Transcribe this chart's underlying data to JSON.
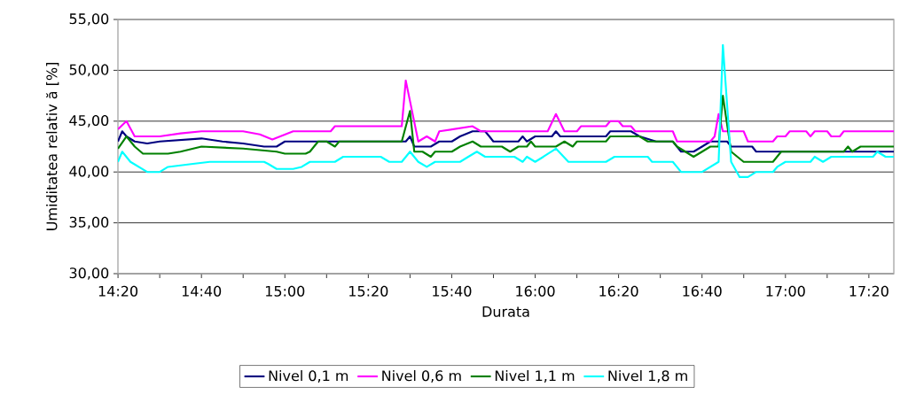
{
  "chart_data": {
    "type": "line",
    "xlabel": "Durata",
    "ylabel": "Umiditatea relativ ă [%]",
    "xlim": [
      14.333,
      17.433
    ],
    "ylim": [
      30,
      55
    ],
    "xticks": [
      {
        "value": 14.3333,
        "label": "14:20"
      },
      {
        "value": 14.5,
        "label": null
      },
      {
        "value": 14.6667,
        "label": "14:40"
      },
      {
        "value": 14.8333,
        "label": null
      },
      {
        "value": 15,
        "label": "15:00"
      },
      {
        "value": 15.1667,
        "label": null
      },
      {
        "value": 15.3333,
        "label": "15:20"
      },
      {
        "value": 15.5,
        "label": null
      },
      {
        "value": 15.6667,
        "label": "15:40"
      },
      {
        "value": 15.8333,
        "label": null
      },
      {
        "value": 16,
        "label": "16:00"
      },
      {
        "value": 16.1667,
        "label": null
      },
      {
        "value": 16.3333,
        "label": "16:20"
      },
      {
        "value": 16.5,
        "label": null
      },
      {
        "value": 16.6667,
        "label": "16:40"
      },
      {
        "value": 16.8333,
        "label": null
      },
      {
        "value": 17,
        "label": "17:00"
      },
      {
        "value": 17.1667,
        "label": null
      },
      {
        "value": 17.3333,
        "label": "17:20"
      }
    ],
    "yticks": [
      {
        "value": 30,
        "label": "30,00"
      },
      {
        "value": 35,
        "label": "35,00"
      },
      {
        "value": 40,
        "label": "40,00"
      },
      {
        "value": 45,
        "label": "45,00"
      },
      {
        "value": 50,
        "label": "50,00"
      },
      {
        "value": 55,
        "label": "55,00"
      }
    ],
    "grid": "y",
    "legend": "bottom",
    "series": [
      {
        "name": "Nivel 0,1 m",
        "color": "#000080",
        "x": [
          14.333,
          14.35,
          14.367,
          14.4,
          14.45,
          14.5,
          14.667,
          14.75,
          14.833,
          14.917,
          14.967,
          15,
          15.483,
          15.5,
          15.517,
          15.583,
          15.617,
          15.667,
          15.7,
          15.75,
          15.8,
          15.817,
          15.833,
          15.933,
          15.95,
          15.967,
          16,
          16.067,
          16.083,
          16.1,
          16.283,
          16.3,
          16.383,
          16.417,
          16.483,
          16.55,
          16.583,
          16.633,
          16.667,
          16.7,
          16.767,
          16.783,
          16.867,
          16.883,
          17.433
        ],
        "values": [
          43,
          44,
          43.5,
          43,
          42.8,
          43,
          43.3,
          43,
          42.8,
          42.5,
          42.5,
          43,
          43,
          43.5,
          42.5,
          42.5,
          43,
          43,
          43.5,
          44,
          44,
          43.5,
          43,
          43,
          43.5,
          43,
          43.5,
          43.5,
          44,
          43.5,
          43.5,
          44,
          44,
          43.5,
          43,
          43,
          42,
          42,
          42.5,
          43,
          43,
          42.5,
          42.5,
          42,
          42
        ]
      },
      {
        "name": "Nivel 0,6 m",
        "color": "#ff00ff",
        "x": [
          14.333,
          14.367,
          14.4,
          14.5,
          14.583,
          14.667,
          14.833,
          14.9,
          14.95,
          15.033,
          15.183,
          15.2,
          15.467,
          15.483,
          15.533,
          15.567,
          15.6,
          15.617,
          15.75,
          15.783,
          16.05,
          16.083,
          16.117,
          16.167,
          16.183,
          16.283,
          16.3,
          16.333,
          16.35,
          16.383,
          16.4,
          16.55,
          16.567,
          16.7,
          16.717,
          16.733,
          16.75,
          16.833,
          16.85,
          16.95,
          16.967,
          17,
          17.017,
          17.083,
          17.1,
          17.117,
          17.167,
          17.183,
          17.217,
          17.233,
          17.433
        ],
        "values": [
          44.2,
          45,
          43.5,
          43.5,
          43.8,
          44,
          44,
          43.7,
          43.2,
          44,
          44,
          44.5,
          44.5,
          49,
          43,
          43.5,
          43,
          44,
          44.5,
          44,
          44,
          45.7,
          44,
          44,
          44.5,
          44.5,
          45,
          45,
          44.5,
          44.5,
          44,
          44,
          43,
          43,
          43.5,
          45.7,
          44,
          44,
          43,
          43,
          43.5,
          43.5,
          44,
          44,
          43.5,
          44,
          44,
          43.5,
          43.5,
          44,
          44
        ]
      },
      {
        "name": "Nivel 1,1 m",
        "color": "#008000",
        "x": [
          14.333,
          14.367,
          14.4,
          14.433,
          14.533,
          14.583,
          14.667,
          14.833,
          14.967,
          15,
          15.083,
          15.1,
          15.133,
          15.167,
          15.2,
          15.217,
          15.467,
          15.5,
          15.517,
          15.55,
          15.583,
          15.6,
          15.667,
          15.7,
          15.75,
          15.783,
          15.867,
          15.9,
          15.933,
          15.967,
          15.983,
          16,
          16.083,
          16.117,
          16.15,
          16.167,
          16.283,
          16.3,
          16.417,
          16.45,
          16.55,
          16.567,
          16.6,
          16.633,
          16.667,
          16.7,
          16.733,
          16.75,
          16.783,
          16.833,
          16.95,
          16.983,
          17.233,
          17.25,
          17.267,
          17.3,
          17.433
        ],
        "values": [
          42.3,
          43.5,
          42.5,
          41.8,
          41.8,
          42,
          42.5,
          42.3,
          42,
          41.8,
          41.8,
          42,
          43,
          43,
          42.5,
          43,
          43,
          46,
          42,
          42,
          41.5,
          42,
          42,
          42.5,
          43,
          42.5,
          42.5,
          42,
          42.5,
          42.5,
          43,
          42.5,
          42.5,
          43,
          42.5,
          43,
          43,
          43.5,
          43.5,
          43,
          43,
          42.5,
          42,
          41.5,
          42,
          42.5,
          42.5,
          47.5,
          42,
          41,
          41,
          42,
          42,
          42.5,
          42,
          42.5,
          42.5
        ]
      },
      {
        "name": "Nivel 1,8 m",
        "color": "#00ffff",
        "x": [
          14.333,
          14.35,
          14.383,
          14.45,
          14.5,
          14.533,
          14.633,
          14.7,
          14.917,
          14.933,
          14.967,
          15.033,
          15.067,
          15.1,
          15.2,
          15.233,
          15.383,
          15.417,
          15.467,
          15.5,
          15.533,
          15.567,
          15.6,
          15.7,
          15.733,
          15.767,
          15.8,
          15.917,
          15.95,
          15.967,
          16,
          16.033,
          16.083,
          16.133,
          16.283,
          16.317,
          16.45,
          16.467,
          16.55,
          16.583,
          16.667,
          16.7,
          16.733,
          16.75,
          16.783,
          16.817,
          16.85,
          16.883,
          16.95,
          16.967,
          17,
          17.1,
          17.117,
          17.15,
          17.183,
          17.35,
          17.367,
          17.4,
          17.433
        ],
        "values": [
          41,
          42,
          41,
          40,
          40,
          40.5,
          40.8,
          41,
          41,
          40.8,
          40.3,
          40.3,
          40.5,
          41,
          41,
          41.5,
          41.5,
          41,
          41,
          42,
          41,
          40.5,
          41,
          41,
          41.5,
          42,
          41.5,
          41.5,
          41,
          41.5,
          41,
          41.5,
          42.3,
          41,
          41,
          41.5,
          41.5,
          41,
          41,
          40,
          40,
          40.5,
          41,
          52.5,
          41,
          39.5,
          39.5,
          40,
          40,
          40.5,
          41,
          41,
          41.5,
          41,
          41.5,
          41.5,
          42,
          41.5,
          41.5
        ]
      }
    ]
  }
}
